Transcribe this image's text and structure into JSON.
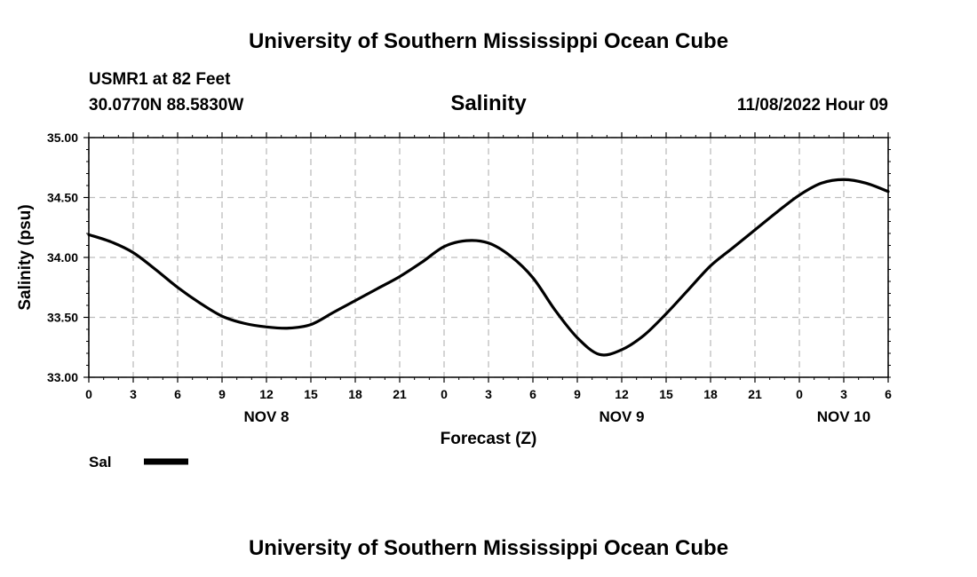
{
  "header": {
    "title": "University of Southern Mississippi Ocean Cube",
    "station": "USMR1 at 82 Feet",
    "coords": "30.0770N  88.5830W",
    "run": "11/08/2022 Hour 09"
  },
  "footer": {
    "title": "University of Southern Mississippi Ocean Cube"
  },
  "legend": {
    "label": "Sal"
  },
  "chart_data": {
    "type": "line",
    "title": "Salinity",
    "xlabel": "Forecast (Z)",
    "ylabel": "Salinity (psu)",
    "xlim": [
      0,
      54
    ],
    "ylim": [
      33.0,
      35.0
    ],
    "yticks": [
      "33.00",
      "33.50",
      "34.00",
      "34.50",
      "35.00"
    ],
    "xtick_labels": [
      "0",
      "3",
      "6",
      "9",
      "12",
      "15",
      "18",
      "21",
      "0",
      "3",
      "6",
      "9",
      "12",
      "15",
      "18",
      "21",
      "0",
      "3",
      "6"
    ],
    "day_labels": [
      {
        "text": "NOV 8",
        "hour": 12
      },
      {
        "text": "NOV 9",
        "hour": 36
      },
      {
        "text": "NOV 10",
        "hour": 51
      }
    ],
    "grid": true,
    "series": [
      {
        "name": "Sal",
        "color": "#000000",
        "x": [
          0,
          1.5,
          3,
          4.5,
          6,
          7.5,
          9,
          10.5,
          12,
          13.5,
          15,
          16.5,
          18,
          19.5,
          21,
          22.5,
          24,
          25.5,
          27,
          28.5,
          30,
          31.5,
          33,
          34.5,
          36,
          37.5,
          39,
          40.5,
          42,
          43.5,
          45,
          46.5,
          48,
          49.5,
          51,
          52.5,
          54
        ],
        "y": [
          34.19,
          34.13,
          34.04,
          33.9,
          33.75,
          33.62,
          33.51,
          33.45,
          33.42,
          33.41,
          33.44,
          33.54,
          33.64,
          33.74,
          33.84,
          33.96,
          34.09,
          34.14,
          34.12,
          34.01,
          33.83,
          33.56,
          33.33,
          33.19,
          33.23,
          33.35,
          33.53,
          33.73,
          33.93,
          34.08,
          34.23,
          34.38,
          34.52,
          34.62,
          34.65,
          34.62,
          34.55
        ]
      }
    ]
  }
}
